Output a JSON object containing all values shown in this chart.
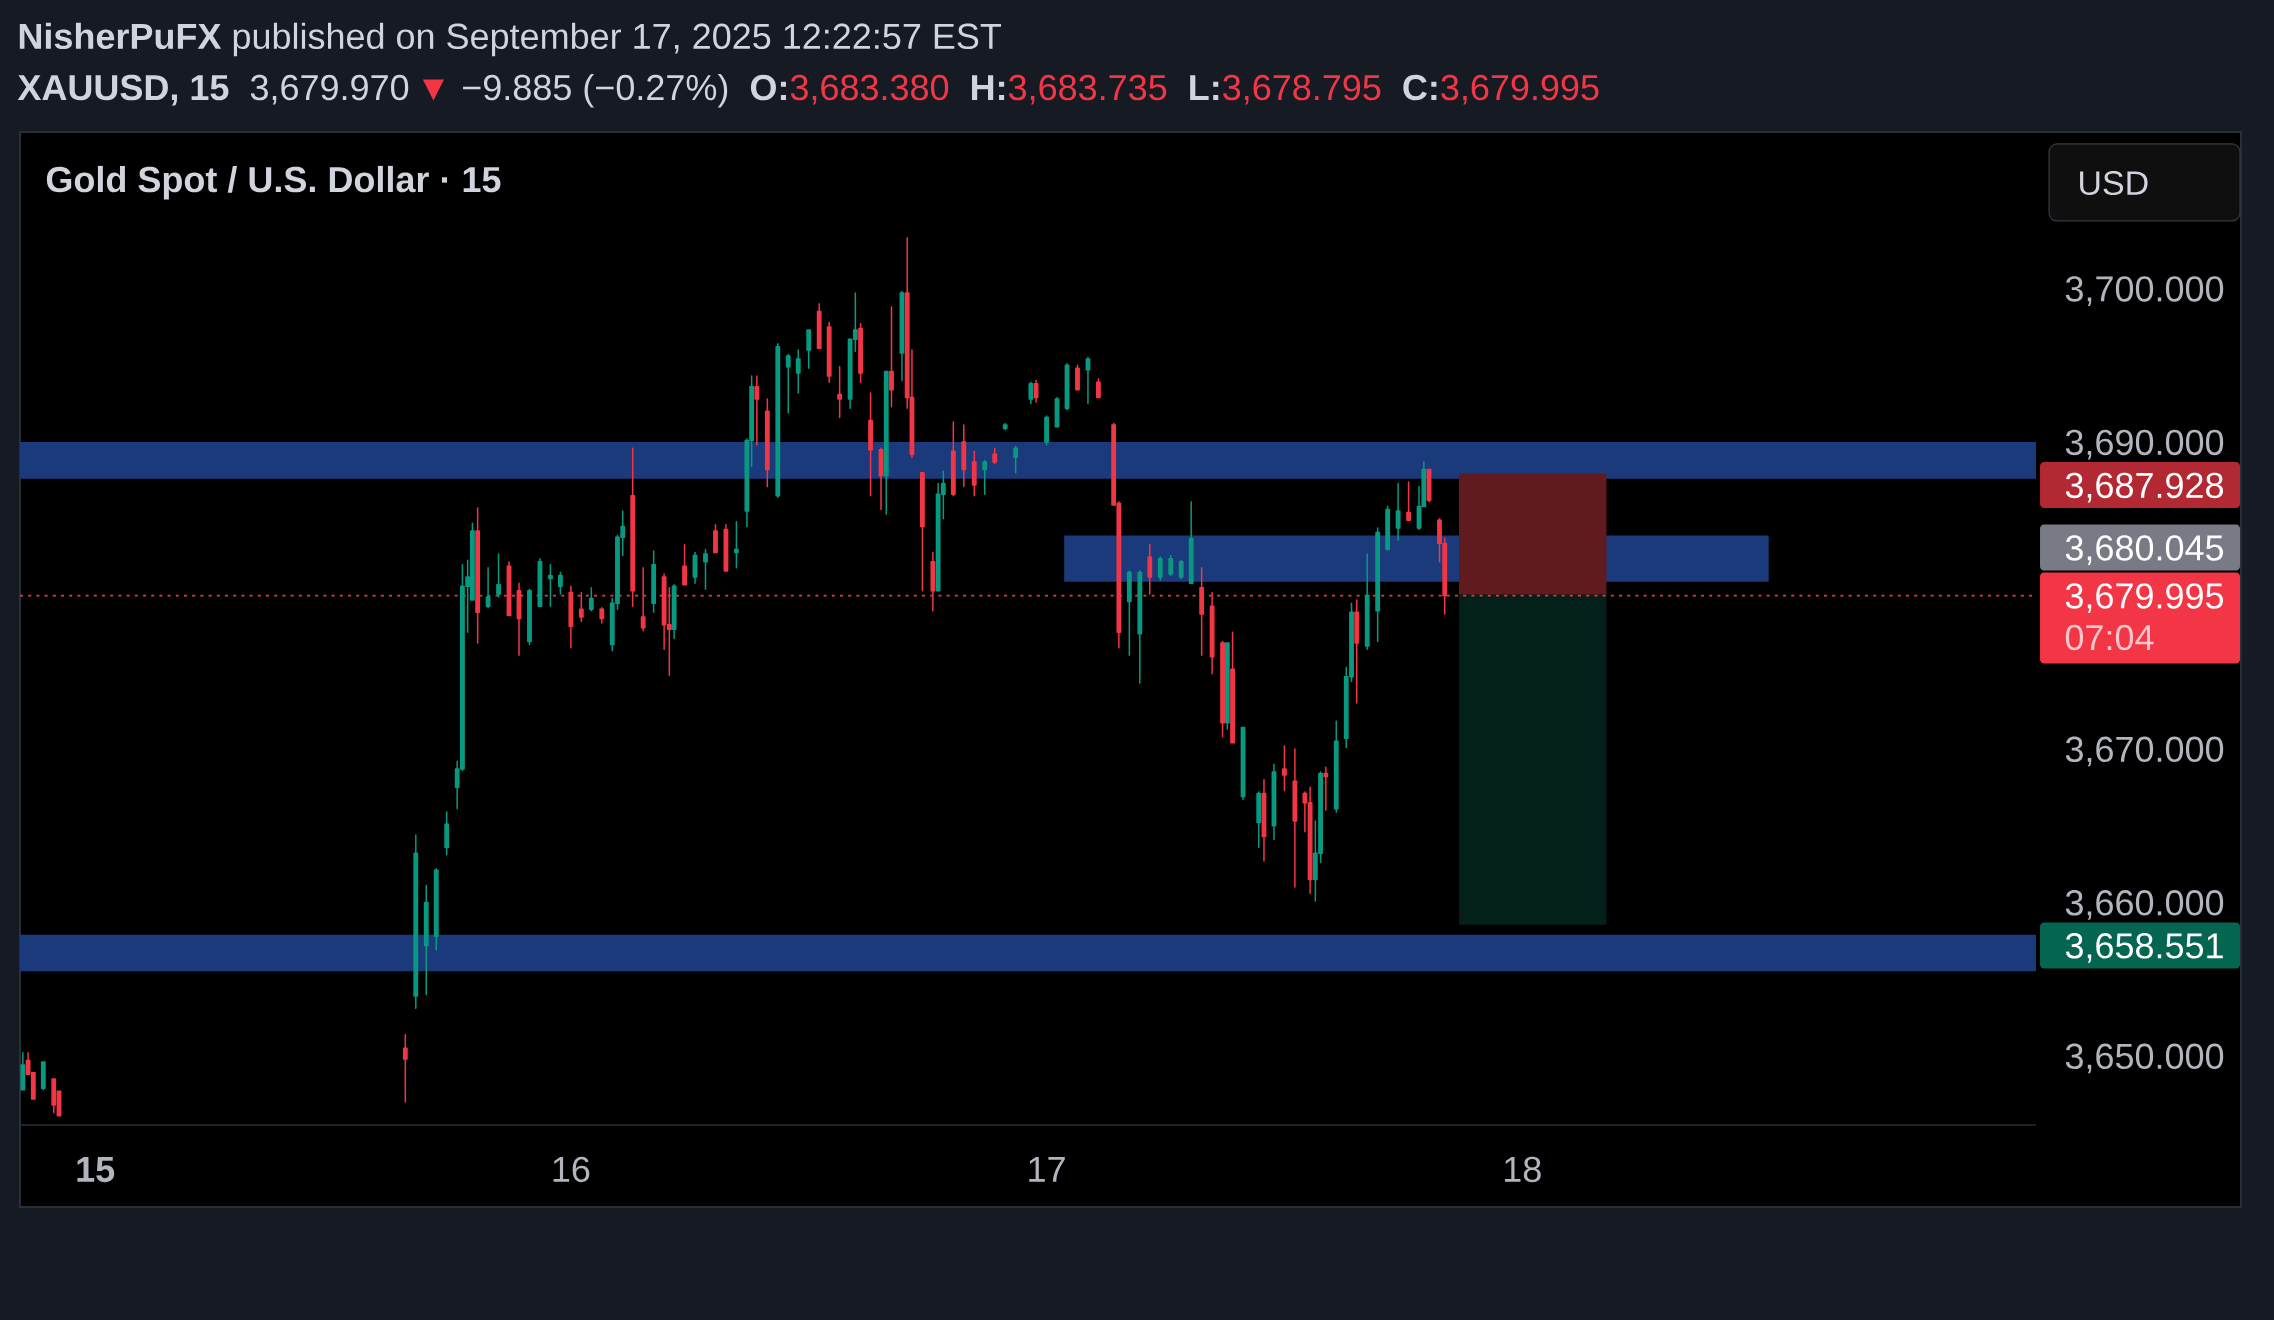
{
  "chart_data": {
    "type": "candlestick",
    "title": "**NisherPuFX** published on September 17, 2025 12:22:57 EST",
    "subtitle": "Gold Spot / U.S. Dollar · 15",
    "annotations": [
      "XAUUSD, 15",
      "3,679.970",
      "▼",
      "−9.885 (−0.27%)",
      "O:",
      "3,683.380",
      "H:",
      "3,683.735",
      "L:",
      "3,678.795",
      "C:",
      "3,679.995",
      "USD",
      "07:04",
      "3,687.928",
      "3,680.045",
      "3,658.551"
    ],
    "x": [
      14.848,
      14.859,
      14.87,
      14.891,
      14.913,
      14.924,
      15.652,
      15.674,
      15.696,
      15.717,
      15.739,
      15.761,
      15.772,
      15.783,
      15.793,
      15.804,
      15.826,
      15.848,
      15.87,
      15.891,
      15.913,
      15.935,
      15.957,
      15.978,
      16.0,
      16.022,
      16.043,
      16.065,
      16.087,
      16.098,
      16.109,
      16.13,
      16.152,
      16.174,
      16.196,
      16.207,
      16.217,
      16.239,
      16.261,
      16.283,
      16.304,
      16.326,
      16.348,
      16.37,
      16.38,
      16.391,
      16.413,
      16.435,
      16.457,
      16.478,
      16.5,
      16.522,
      16.543,
      16.565,
      16.587,
      16.598,
      16.609,
      16.63,
      16.652,
      16.663,
      16.674,
      16.696,
      16.707,
      16.717,
      16.739,
      16.761,
      16.772,
      16.783,
      16.804,
      16.826,
      16.848,
      16.87,
      16.891,
      16.913,
      16.935,
      16.967,
      16.978,
      17.0,
      17.022,
      17.043,
      17.065,
      17.087,
      17.109,
      17.141,
      17.152,
      17.174,
      17.196,
      17.217,
      17.239,
      17.261,
      17.283,
      17.304,
      17.326,
      17.348,
      17.37,
      17.38,
      17.391,
      17.413,
      17.446,
      17.457,
      17.478,
      17.5,
      17.522,
      17.543,
      17.554,
      17.565,
      17.576,
      17.587,
      17.609,
      17.63,
      17.641,
      17.652,
      17.674,
      17.696,
      17.717,
      17.739,
      17.761,
      17.783,
      17.793,
      17.804,
      17.826,
      17.837
    ],
    "ohlc": [
      [
        3647.8,
        3650.2,
        3647.8,
        3649.4
      ],
      [
        3649.7,
        3650.2,
        3648.8,
        3648.8
      ],
      [
        3648.9,
        3648.9,
        3647.2,
        3647.2
      ],
      [
        3647.9,
        3649.6,
        3647.8,
        3649.6
      ],
      [
        3648.5,
        3648.5,
        3646.3,
        3646.8
      ],
      [
        3647.7,
        3647.7,
        3646.1,
        3646.1
      ],
      [
        3650.5,
        3651.4,
        3647.0,
        3649.8
      ],
      [
        3653.9,
        3664.4,
        3653.1,
        3663.2
      ],
      [
        3657.2,
        3661.1,
        3654.0,
        3660.0
      ],
      [
        3657.8,
        3662.2,
        3656.9,
        3662.1
      ],
      [
        3663.6,
        3665.9,
        3663.1,
        3665.1
      ],
      [
        3667.5,
        3669.2,
        3666.1,
        3668.7
      ],
      [
        3668.7,
        3682.0,
        3668.6,
        3680.6
      ],
      [
        3680.6,
        3682.3,
        3677.6,
        3681.2
      ],
      [
        3679.7,
        3684.7,
        3679.7,
        3684.2
      ],
      [
        3684.2,
        3685.7,
        3676.9,
        3678.9
      ],
      [
        3679.3,
        3681.8,
        3679.2,
        3679.9
      ],
      [
        3680.1,
        3682.7,
        3679.9,
        3680.7
      ],
      [
        3681.9,
        3682.2,
        3678.7,
        3678.7
      ],
      [
        3680.3,
        3680.8,
        3676.1,
        3678.5
      ],
      [
        3677.0,
        3680.4,
        3676.8,
        3680.3
      ],
      [
        3679.3,
        3682.4,
        3679.3,
        3682.2
      ],
      [
        3681.1,
        3682.0,
        3679.3,
        3681.3
      ],
      [
        3680.6,
        3681.5,
        3680.1,
        3681.3
      ],
      [
        3680.2,
        3680.6,
        3676.6,
        3678.0
      ],
      [
        3679.1,
        3680.2,
        3678.3,
        3678.6
      ],
      [
        3679.1,
        3680.5,
        3679.0,
        3679.8
      ],
      [
        3679.1,
        3679.2,
        3678.2,
        3678.5
      ],
      [
        3676.8,
        3679.8,
        3676.4,
        3679.5
      ],
      [
        3679.5,
        3683.9,
        3679.1,
        3683.8
      ],
      [
        3683.8,
        3685.5,
        3682.6,
        3684.5
      ],
      [
        3686.5,
        3689.6,
        3679.3,
        3680.3
      ],
      [
        3678.6,
        3681.8,
        3677.7,
        3677.9
      ],
      [
        3679.5,
        3682.9,
        3678.9,
        3682.0
      ],
      [
        3681.2,
        3681.4,
        3676.5,
        3678.1
      ],
      [
        3678.1,
        3680.5,
        3674.8,
        3677.8
      ],
      [
        3677.8,
        3680.7,
        3677.2,
        3680.6
      ],
      [
        3681.9,
        3683.3,
        3680.7,
        3680.7
      ],
      [
        3681.2,
        3682.8,
        3680.8,
        3682.6
      ],
      [
        3682.2,
        3683.0,
        3680.4,
        3682.7
      ],
      [
        3684.2,
        3684.6,
        3682.8,
        3682.8
      ],
      [
        3684.3,
        3684.6,
        3681.6,
        3681.6
      ],
      [
        3682.8,
        3684.8,
        3681.8,
        3683.0
      ],
      [
        3685.5,
        3690.2,
        3684.5,
        3690.1
      ],
      [
        3690.1,
        3694.3,
        3688.4,
        3693.6
      ],
      [
        3693.6,
        3694.3,
        3689.8,
        3692.8
      ],
      [
        3692.0,
        3692.8,
        3687.1,
        3688.2
      ],
      [
        3686.5,
        3696.4,
        3686.4,
        3696.2
      ],
      [
        3694.9,
        3695.7,
        3691.9,
        3695.6
      ],
      [
        3694.5,
        3696.0,
        3693.2,
        3695.4
      ],
      [
        3696.0,
        3697.3,
        3694.8,
        3697.3
      ],
      [
        3698.5,
        3699.0,
        3696.1,
        3696.1
      ],
      [
        3697.5,
        3697.8,
        3693.9,
        3694.3
      ],
      [
        3693.1,
        3694.9,
        3691.6,
        3692.8
      ],
      [
        3692.8,
        3696.7,
        3692.2,
        3696.7
      ],
      [
        3696.7,
        3699.7,
        3695.9,
        3697.3
      ],
      [
        3697.4,
        3697.7,
        3693.9,
        3694.5
      ],
      [
        3691.4,
        3693.2,
        3686.5,
        3689.5
      ],
      [
        3689.5,
        3689.6,
        3685.6,
        3687.8
      ],
      [
        3687.8,
        3694.6,
        3685.3,
        3694.6
      ],
      [
        3694.6,
        3698.8,
        3692.3,
        3693.4
      ],
      [
        3695.8,
        3699.8,
        3694.0,
        3699.7
      ],
      [
        3699.7,
        3703.3,
        3692.2,
        3692.9
      ],
      [
        3692.9,
        3696.0,
        3689.0,
        3689.2
      ],
      [
        3688.0,
        3688.0,
        3680.3,
        3684.5
      ],
      [
        3682.2,
        3682.8,
        3679.0,
        3680.3
      ],
      [
        3680.3,
        3687.3,
        3680.3,
        3686.6
      ],
      [
        3686.6,
        3688.1,
        3685.0,
        3687.3
      ],
      [
        3689.4,
        3691.3,
        3686.5,
        3686.6
      ],
      [
        3690.0,
        3691.1,
        3687.1,
        3688.2
      ],
      [
        3688.7,
        3689.4,
        3686.5,
        3687.2
      ],
      [
        3688.2,
        3688.8,
        3686.6,
        3688.7
      ],
      [
        3689.2,
        3689.6,
        3688.6,
        3688.7
      ],
      [
        3690.9,
        3691.2,
        3690.8,
        3691.1
      ],
      [
        3689.0,
        3689.7,
        3688.0,
        3689.6
      ],
      [
        3692.8,
        3693.9,
        3692.5,
        3693.8
      ],
      [
        3693.8,
        3694.0,
        3692.6,
        3692.9
      ],
      [
        3690.0,
        3691.7,
        3689.8,
        3691.6
      ],
      [
        3691.0,
        3692.9,
        3691.0,
        3692.8
      ],
      [
        3692.2,
        3695.1,
        3692.1,
        3695.0
      ],
      [
        3694.8,
        3695.0,
        3693.4,
        3693.4
      ],
      [
        3694.7,
        3695.5,
        3692.5,
        3695.4
      ],
      [
        3693.9,
        3694.1,
        3692.9,
        3692.9
      ],
      [
        3691.1,
        3691.2,
        3685.9,
        3685.9
      ],
      [
        3686.0,
        3686.1,
        3676.6,
        3677.6
      ],
      [
        3679.6,
        3681.6,
        3676.1,
        3681.5
      ],
      [
        3677.5,
        3681.6,
        3674.3,
        3681.5
      ],
      [
        3682.5,
        3683.3,
        3680.1,
        3681.2
      ],
      [
        3681.2,
        3682.5,
        3681.0,
        3682.4
      ],
      [
        3681.4,
        3682.6,
        3681.3,
        3682.4
      ],
      [
        3681.2,
        3682.3,
        3681.1,
        3682.2
      ],
      [
        3680.8,
        3686.1,
        3680.8,
        3683.7
      ],
      [
        3680.5,
        3681.8,
        3676.1,
        3678.8
      ],
      [
        3679.3,
        3680.2,
        3674.9,
        3676.0
      ],
      [
        3676.9,
        3677.0,
        3670.8,
        3671.7
      ],
      [
        3671.7,
        3676.9,
        3671.3,
        3676.9
      ],
      [
        3675.2,
        3677.6,
        3670.4,
        3670.4
      ],
      [
        3666.9,
        3671.4,
        3666.7,
        3671.4
      ],
      [
        3665.2,
        3667.2,
        3663.6,
        3667.1
      ],
      [
        3667.1,
        3668.0,
        3662.7,
        3664.3
      ],
      [
        3665.0,
        3669.0,
        3664.1,
        3668.5
      ],
      [
        3668.7,
        3670.2,
        3667.3,
        3668.3
      ],
      [
        3667.9,
        3670.0,
        3661.0,
        3665.3
      ],
      [
        3667.1,
        3667.2,
        3664.6,
        3666.5
      ],
      [
        3666.5,
        3667.5,
        3660.6,
        3661.5
      ],
      [
        3661.5,
        3665.3,
        3660.1,
        3663.2
      ],
      [
        3663.2,
        3668.5,
        3662.6,
        3668.4
      ],
      [
        3668.4,
        3668.8,
        3666.0,
        3668.2
      ],
      [
        3666.1,
        3671.8,
        3665.9,
        3670.5
      ],
      [
        3670.7,
        3675.3,
        3670.1,
        3674.7
      ],
      [
        3674.7,
        3679.5,
        3674.4,
        3678.9
      ],
      [
        3678.9,
        3679.7,
        3673.0,
        3676.9
      ],
      [
        3676.7,
        3682.7,
        3676.5,
        3680.0
      ],
      [
        3679.0,
        3684.4,
        3677.0,
        3684.1
      ],
      [
        3683.0,
        3685.8,
        3683.0,
        3685.6
      ],
      [
        3684.4,
        3687.3,
        3683.6,
        3685.5
      ],
      [
        3685.4,
        3687.4,
        3684.9,
        3684.9
      ],
      [
        3684.4,
        3687.1,
        3684.3,
        3685.8
      ],
      [
        3685.8,
        3688.7,
        3685.8,
        3688.2
      ],
      [
        3688.2,
        3688.2,
        3686.1,
        3686.2
      ],
      [
        3684.9,
        3685.0,
        3682.2,
        3683.4
      ],
      [
        3683.38,
        3683.735,
        3678.795,
        3679.995
      ]
    ],
    "colors": [
      "#089981",
      "#f23645",
      "#f23645",
      "#089981",
      "#f23645",
      "#f23645",
      "#f23645",
      "#089981",
      "#089981",
      "#089981",
      "#089981",
      "#089981",
      "#089981",
      "#089981",
      "#089981",
      "#f23645",
      "#089981",
      "#089981",
      "#f23645",
      "#f23645",
      "#089981",
      "#089981",
      "#089981",
      "#089981",
      "#f23645",
      "#f23645",
      "#089981",
      "#f23645",
      "#089981",
      "#089981",
      "#089981",
      "#f23645",
      "#f23645",
      "#089981",
      "#f23645",
      "#f23645",
      "#089981",
      "#f23645",
      "#089981",
      "#089981",
      "#f23645",
      "#f23645",
      "#089981",
      "#089981",
      "#089981",
      "#f23645",
      "#f23645",
      "#089981",
      "#089981",
      "#089981",
      "#089981",
      "#f23645",
      "#f23645",
      "#f23645",
      "#089981",
      "#089981",
      "#f23645",
      "#f23645",
      "#f23645",
      "#089981",
      "#f23645",
      "#089981",
      "#f23645",
      "#f23645",
      "#f23645",
      "#f23645",
      "#089981",
      "#089981",
      "#f23645",
      "#f23645",
      "#f23645",
      "#089981",
      "#f23645",
      "#089981",
      "#089981",
      "#089981",
      "#f23645",
      "#089981",
      "#089981",
      "#089981",
      "#f23645",
      "#089981",
      "#f23645",
      "#f23645",
      "#f23645",
      "#089981",
      "#089981",
      "#f23645",
      "#089981",
      "#089981",
      "#089981",
      "#089981",
      "#f23645",
      "#f23645",
      "#f23645",
      "#089981",
      "#f23645",
      "#089981",
      "#089981",
      "#f23645",
      "#089981",
      "#f23645",
      "#f23645",
      "#f23645",
      "#f23645",
      "#089981",
      "#089981",
      "#f23645",
      "#089981",
      "#089981",
      "#089981",
      "#f23645",
      "#089981",
      "#089981",
      "#089981",
      "#089981",
      "#f23645",
      "#089981",
      "#089981",
      "#f23645",
      "#f23645",
      "#f23645"
    ],
    "series": [
      {
        "type": "line",
        "x": [
          17.037,
          18.518
        ],
        "values": [
          null,
          null
        ],
        "lower": [
          3680.9,
          3680.9
        ],
        "upper": [
          3683.9,
          3683.9
        ],
        "color": "#1b3a7b"
      },
      {
        "type": "line",
        "x": [
          17.867,
          18.177
        ],
        "values": [
          null,
          null
        ],
        "lower": [
          3680.045,
          3680.045
        ],
        "upper": [
          3687.928,
          3687.928
        ],
        "color": "#611a1e"
      },
      {
        "type": "line",
        "x": [
          17.867,
          18.177
        ],
        "values": [
          null,
          null
        ],
        "lower": [
          3658.551,
          3658.551
        ],
        "upper": [
          3680.045,
          3680.045
        ],
        "color": "#03201a"
      }
    ],
    "xlim": [
      14.842,
      19.08
    ],
    "xticks": [
      15,
      16,
      17,
      18
    ],
    "ylim": [
      3645.5,
      3710.2
    ],
    "yticks": [
      {
        "value": 3650,
        "label": "3,650.000"
      },
      {
        "value": 3660,
        "label": "3,660.000"
      },
      {
        "value": 3670,
        "label": "3,670.000"
      },
      {
        "value": 3690,
        "label": "3,690.000"
      },
      {
        "value": 3700,
        "label": "3,700.000"
      }
    ],
    "bands": [
      {
        "axis": "y",
        "from": 3687.6,
        "to": 3690.0,
        "color": "#1b3a7b"
      },
      {
        "axis": "y",
        "from": 3655.5,
        "to": 3657.9,
        "color": "#1b3a7b"
      }
    ],
    "ref_lines": [
      {
        "axis": "y",
        "value": 3679.995,
        "label": "3,679.995",
        "color": "#f23645",
        "line_style": "dotted"
      }
    ]
  }
}
